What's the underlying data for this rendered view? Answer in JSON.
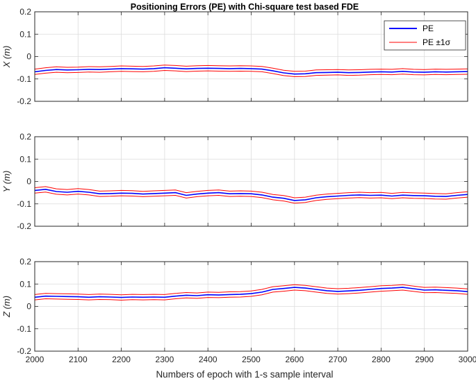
{
  "chart_data": {
    "type": "line",
    "title": "Positioning Errors (PE) with Chi-square test based FDE",
    "xlabel": "Numbers of epoch with 1-s sample interval",
    "xlim": [
      2000,
      3000
    ],
    "xticks": [
      "2000",
      "2100",
      "2200",
      "2300",
      "2400",
      "2500",
      "2600",
      "2700",
      "2800",
      "2900",
      "3000"
    ],
    "yticks": [
      "-0.2",
      "-0.1",
      "0",
      "0.1",
      "0.2"
    ],
    "grid": true,
    "legend": {
      "placement": "top-right",
      "entries": [
        {
          "label": "PE",
          "color": "#0000ff"
        },
        {
          "label": "PE ±1σ",
          "color": "#ff0000"
        }
      ]
    },
    "sigma": 0.012,
    "colors": {
      "pe": "#0000ff",
      "bound": "#ff0000",
      "grid": "#dcdcdc",
      "axis": "#262626"
    },
    "panels": [
      {
        "ylabel": "X (m)",
        "ylim": [
          -0.2,
          0.2
        ],
        "x": [
          2000,
          2025,
          2050,
          2075,
          2100,
          2125,
          2150,
          2175,
          2200,
          2225,
          2250,
          2275,
          2300,
          2325,
          2350,
          2375,
          2400,
          2425,
          2450,
          2475,
          2500,
          2525,
          2550,
          2575,
          2600,
          2625,
          2650,
          2675,
          2700,
          2725,
          2750,
          2775,
          2800,
          2825,
          2850,
          2875,
          2900,
          2925,
          2950,
          2975,
          3000
        ],
        "series": [
          {
            "name": "PE",
            "values": [
              -0.068,
              -0.062,
              -0.058,
              -0.06,
              -0.059,
              -0.057,
              -0.058,
              -0.056,
              -0.054,
              -0.055,
              -0.056,
              -0.054,
              -0.05,
              -0.052,
              -0.055,
              -0.053,
              -0.052,
              -0.053,
              -0.054,
              -0.053,
              -0.054,
              -0.056,
              -0.064,
              -0.073,
              -0.078,
              -0.077,
              -0.072,
              -0.071,
              -0.07,
              -0.072,
              -0.071,
              -0.069,
              -0.068,
              -0.069,
              -0.066,
              -0.069,
              -0.07,
              -0.068,
              -0.069,
              -0.068,
              -0.067
            ]
          }
        ]
      },
      {
        "ylabel": "Y (m)",
        "ylim": [
          -0.2,
          0.2
        ],
        "x": [
          2000,
          2025,
          2050,
          2075,
          2100,
          2125,
          2150,
          2175,
          2200,
          2225,
          2250,
          2275,
          2300,
          2325,
          2350,
          2375,
          2400,
          2425,
          2450,
          2475,
          2500,
          2525,
          2550,
          2575,
          2600,
          2625,
          2650,
          2675,
          2700,
          2725,
          2750,
          2775,
          2800,
          2825,
          2850,
          2875,
          2900,
          2925,
          2950,
          2975,
          3000
        ],
        "series": [
          {
            "name": "PE",
            "values": [
              -0.04,
              -0.035,
              -0.045,
              -0.048,
              -0.044,
              -0.048,
              -0.055,
              -0.054,
              -0.052,
              -0.053,
              -0.056,
              -0.054,
              -0.052,
              -0.05,
              -0.062,
              -0.056,
              -0.052,
              -0.05,
              -0.055,
              -0.054,
              -0.055,
              -0.06,
              -0.07,
              -0.075,
              -0.085,
              -0.082,
              -0.073,
              -0.068,
              -0.065,
              -0.062,
              -0.06,
              -0.062,
              -0.061,
              -0.065,
              -0.061,
              -0.063,
              -0.064,
              -0.066,
              -0.067,
              -0.062,
              -0.058
            ]
          }
        ]
      },
      {
        "ylabel": "Z (m)",
        "ylim": [
          -0.2,
          0.2
        ],
        "x": [
          2000,
          2025,
          2050,
          2075,
          2100,
          2125,
          2150,
          2175,
          2200,
          2225,
          2250,
          2275,
          2300,
          2325,
          2350,
          2375,
          2400,
          2425,
          2450,
          2475,
          2500,
          2525,
          2550,
          2575,
          2600,
          2625,
          2650,
          2675,
          2700,
          2725,
          2750,
          2775,
          2800,
          2825,
          2850,
          2875,
          2900,
          2925,
          2950,
          2975,
          3000
        ],
        "series": [
          {
            "name": "PE",
            "values": [
              0.041,
              0.046,
              0.045,
              0.044,
              0.043,
              0.041,
              0.043,
              0.042,
              0.04,
              0.042,
              0.041,
              0.042,
              0.041,
              0.046,
              0.05,
              0.048,
              0.052,
              0.051,
              0.053,
              0.054,
              0.057,
              0.064,
              0.076,
              0.08,
              0.085,
              0.082,
              0.076,
              0.07,
              0.067,
              0.069,
              0.072,
              0.076,
              0.08,
              0.082,
              0.085,
              0.079,
              0.073,
              0.074,
              0.072,
              0.07,
              0.066
            ]
          }
        ]
      }
    ]
  }
}
